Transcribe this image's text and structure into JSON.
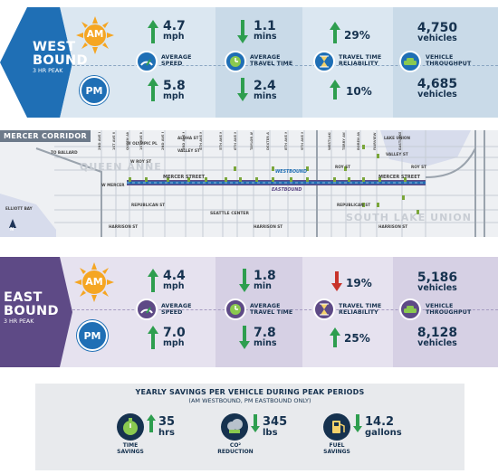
{
  "westbound": {
    "direction": "WEST",
    "direction2": "BOUND",
    "subtitle": "3 HR PEAK",
    "am_label": "AM",
    "pm_label": "PM",
    "am": {
      "speed_value": "4.7",
      "speed_unit": "mph",
      "speed_trend": "up",
      "time_value": "1.1",
      "time_unit": "mins",
      "time_trend": "down",
      "reliability_value": "29%",
      "reliability_trend": "up",
      "throughput_value": "4,750",
      "throughput_unit": "vehicles"
    },
    "pm": {
      "speed_value": "5.8",
      "speed_unit": "mph",
      "speed_trend": "up",
      "time_value": "2.4",
      "time_unit": "mins",
      "time_trend": "down",
      "reliability_value": "10%",
      "reliability_trend": "up",
      "throughput_value": "4,685",
      "throughput_unit": "vehicles"
    },
    "labels": {
      "speed": [
        "AVERAGE",
        "SPEED"
      ],
      "time": [
        "AVERAGE",
        "TRAVEL TIME"
      ],
      "reliability": [
        "TRAVEL TIME",
        "RELIABILITY"
      ],
      "throughput": [
        "VEHICLE",
        "THROUGHPUT"
      ]
    },
    "colors": {
      "primary": "#1f6fb5",
      "band": "#dbe7f1",
      "band_dark": "#c3d5e5"
    }
  },
  "map": {
    "corridor_label": "MERCER CORRIDOR",
    "neighborhoods": [
      "QUEEN ANNE",
      "SOUTH LAKE UNION"
    ],
    "street_labels": {
      "mercer_west": "MERCER STREET",
      "mercer_east": "MERCER STREET",
      "westbound": "WESTBOUND",
      "eastbound": "EASTBOUND",
      "seattle_center": "SEATTLE CENTER",
      "elliott_bay": "ELLIOTT BAY",
      "ballard": "TO BALLARD",
      "lake_union": "LAKE UNION",
      "harrison_w": "HARRISON ST",
      "harrison_c": "HARRISON ST",
      "harrison_e": "HARRISON ST",
      "republican_w": "REPUBLICAN ST",
      "republican_e": "REPUBLICAN ST",
      "roy_w": "W ROY ST",
      "roy_e": "ROY ST",
      "roy_e2": "ROY ST",
      "valley_w": "VALLEY ST",
      "valley_e": "VALLEY ST",
      "aloha": "ALOHA ST",
      "w_mercer": "W MERCER",
      "w_olympic": "W OLYMPIC PL"
    },
    "avenue_labels": [
      "2ND AVE W",
      "1ST AVE W",
      "QUEEN ANNE AVE N",
      "1ST AVE N",
      "2ND AVE N",
      "3RD AVE N",
      "4TH AVE N",
      "5TH AVE N",
      "6TH AVE N",
      "TAYLOR AVE N",
      "DEXTER AVE N",
      "8TH AVE N",
      "9TH AVE N",
      "WESTLAKE AVE N",
      "TERRY AVE N",
      "BOREN AVE N",
      "FAIRVIEW AVE N",
      "EASTLAKE AVE E"
    ],
    "north_label": "N"
  },
  "eastbound": {
    "direction": "EAST",
    "direction2": "BOUND",
    "subtitle": "3 HR PEAK",
    "am_label": "AM",
    "pm_label": "PM",
    "am": {
      "speed_value": "4.4",
      "speed_unit": "mph",
      "speed_trend": "up",
      "time_value": "1.8",
      "time_unit": "min",
      "time_trend": "down",
      "reliability_value": "19%",
      "reliability_trend": "down",
      "throughput_value": "5,186",
      "throughput_unit": "vehicles"
    },
    "pm": {
      "speed_value": "7.0",
      "speed_unit": "mph",
      "speed_trend": "up",
      "time_value": "7.8",
      "time_unit": "mins",
      "time_trend": "down",
      "reliability_value": "25%",
      "reliability_trend": "up",
      "throughput_value": "8,128",
      "throughput_unit": "vehicles"
    },
    "labels": {
      "speed": [
        "AVERAGE",
        "SPEED"
      ],
      "time": [
        "AVERAGE",
        "TRAVEL TIME"
      ],
      "reliability": [
        "TRAVEL TIME",
        "RELIABILITY"
      ],
      "throughput": [
        "VEHICLE",
        "THROUGHPUT"
      ]
    },
    "colors": {
      "primary": "#5e4a86",
      "band": "#e6e2ef",
      "band_dark": "#d4cde3"
    }
  },
  "savings": {
    "title": "YEARLY SAVINGS PER VEHICLE DURING PEAK PERIODS",
    "subtitle": "(AM WESTBOUND, PM EASTBOUND ONLY)",
    "items": [
      {
        "value": "35",
        "unit": "hrs",
        "label1": "TIME",
        "label2": "SAVINGS",
        "icon": "stopwatch-icon"
      },
      {
        "value": "345",
        "unit": "lbs",
        "label1": "CO²",
        "label2": "REDUCTION",
        "icon": "co2-icon"
      },
      {
        "value": "14.2",
        "unit": "gallons",
        "label1": "FUEL",
        "label2": "SAVINGS",
        "icon": "fuel-pump-icon"
      }
    ]
  },
  "colors": {
    "up_arrow": "#2e9e4f",
    "down_arrow": "#2e9e4f",
    "down_red": "#c8332b",
    "text": "#16324f",
    "am_sun": "#f5a623"
  }
}
